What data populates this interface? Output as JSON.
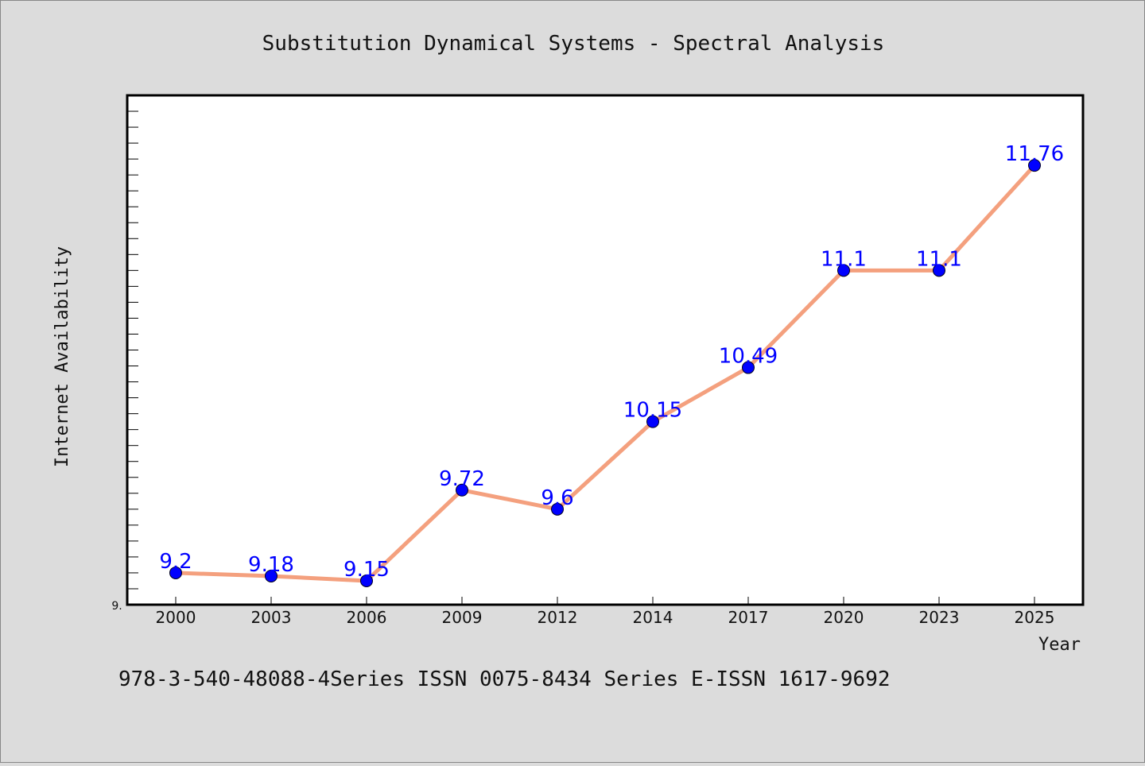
{
  "chart_data": {
    "type": "line",
    "title": "Substitution Dynamical Systems - Spectral Analysis",
    "xlabel": "Year",
    "ylabel": "Internet Availability",
    "categories": [
      "2000",
      "2003",
      "2006",
      "2009",
      "2012",
      "2014",
      "2017",
      "2020",
      "2023",
      "2025"
    ],
    "values": [
      9.2,
      9.18,
      9.15,
      9.72,
      9.6,
      10.15,
      10.49,
      11.1,
      11.1,
      11.76
    ],
    "data_labels": [
      "9.2",
      "9.18",
      "9.15",
      "9.72",
      "9.6",
      "10.15",
      "10.49",
      "11.1",
      "11.1",
      "11.76"
    ],
    "ylim": [
      9.0,
      12.2
    ],
    "y_min_label": "9.",
    "grid": false,
    "line_color": "#f4a07e",
    "marker_color": "#0000ff",
    "label_color": "#0000ff"
  },
  "footnote": "978-3-540-48088-4Series ISSN 0075-8434 Series E-ISSN 1617-9692"
}
